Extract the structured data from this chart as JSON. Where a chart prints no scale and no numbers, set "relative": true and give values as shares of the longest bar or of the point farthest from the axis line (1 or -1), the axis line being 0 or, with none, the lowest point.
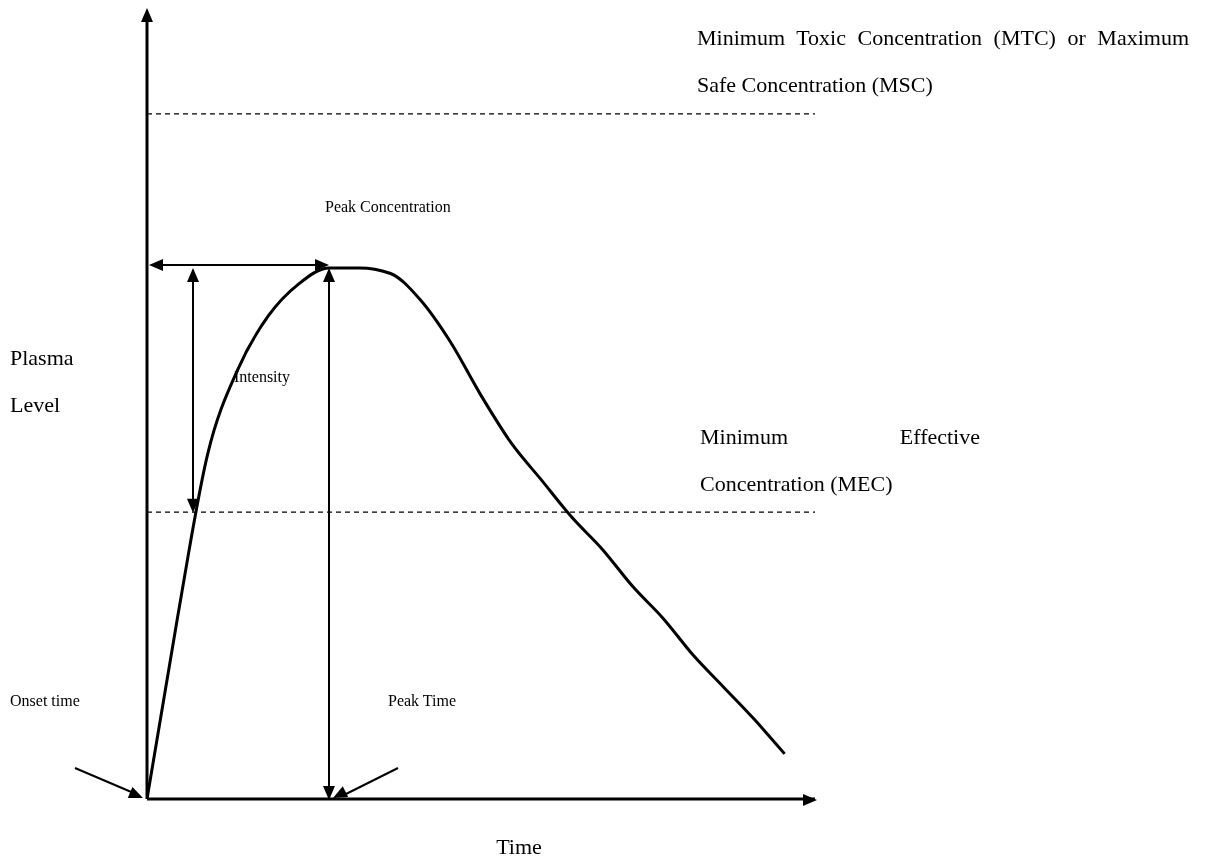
{
  "chart_data": {
    "type": "line",
    "relative": true,
    "marker": "none",
    "xlabel": "Time",
    "ylabel": "Plasma Level",
    "categories": [
      null,
      null,
      null,
      null,
      null,
      null,
      null,
      null,
      null,
      null,
      null,
      null,
      null,
      null,
      null,
      null,
      null,
      null,
      null,
      null,
      null,
      null,
      null
    ],
    "series": [
      {
        "color": "#000000",
        "values": [
          0,
          0.34,
          0.65,
          0.81,
          0.91,
          0.97,
          1,
          1,
          0.99,
          0.94,
          0.86,
          0.76,
          0.67,
          0.6,
          0.53,
          0.47,
          0.4,
          0.34,
          0.27,
          0.21,
          0.15,
          0.085,
          null
        ]
      }
    ],
    "ref_lines": [
      {
        "axis": "y",
        "value": 1.29,
        "label": "Minimum Toxic Concentration (MTC) or Maximum Safe Concentration (MSC)",
        "color": "#000000",
        "line_style": "dashed"
      },
      {
        "axis": "y",
        "value": 0.54,
        "label": "Minimum Effective Concentration (MEC)",
        "color": "#000000",
        "line_style": "dashed"
      }
    ],
    "annotations": [
      "Peak Concentration",
      "Intensity",
      "Onset time",
      "Peak Time"
    ]
  }
}
